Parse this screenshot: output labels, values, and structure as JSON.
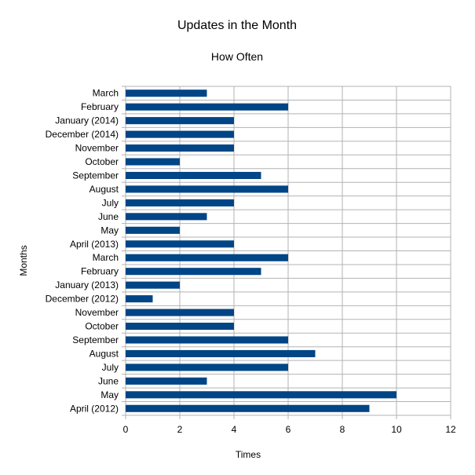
{
  "chart_data": {
    "type": "bar",
    "orientation": "horizontal",
    "title": "Updates in the Month",
    "subtitle": "How Often",
    "xlabel": "Times",
    "ylabel": "Months",
    "categories": [
      "March",
      "February",
      "January (2014)",
      "December (2014)",
      "November",
      "October",
      "September",
      "August",
      "July",
      "June",
      "May",
      "April (2013)",
      "March",
      "February",
      "January (2013)",
      "December (2012)",
      "November",
      "October",
      "September",
      "August",
      "July",
      "June",
      "May",
      "April (2012)"
    ],
    "values": [
      3,
      6,
      4,
      4,
      4,
      2,
      5,
      6,
      4,
      3,
      2,
      4,
      6,
      5,
      2,
      1,
      4,
      4,
      6,
      7,
      6,
      3,
      10,
      9
    ],
    "xlim": [
      0,
      12
    ],
    "xticks": [
      "0",
      "2",
      "4",
      "6",
      "8",
      "10",
      "12"
    ],
    "grid": true,
    "legend": false,
    "colors": {
      "bar": "#004586",
      "grid": "#b3b3b3",
      "axis": "#b3b3b3"
    }
  }
}
